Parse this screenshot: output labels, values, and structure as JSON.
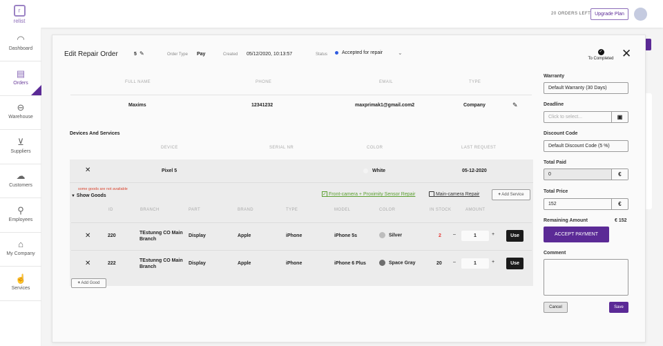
{
  "app": {
    "logo_text": "relist",
    "orders_left": "20 ORDERS LEFT",
    "upgrade_label": "Upgrade Plan"
  },
  "sidebar": {
    "items": [
      {
        "label": "Dashboard",
        "icon": "gauge-icon"
      },
      {
        "label": "Orders",
        "icon": "clipboard-icon"
      },
      {
        "label": "Warehouse",
        "icon": "warehouse-lock-icon"
      },
      {
        "label": "Suppliers",
        "icon": "cart-icon"
      },
      {
        "label": "Customers",
        "icon": "customers-icon"
      },
      {
        "label": "Employees",
        "icon": "person-icon"
      },
      {
        "label": "My Company",
        "icon": "store-icon"
      },
      {
        "label": "Services",
        "icon": "hand-icon"
      }
    ]
  },
  "modal": {
    "title": "Edit Repair Order",
    "order_number": "5",
    "order_type_label": "Order Type",
    "order_type": "Pay",
    "created_label": "Created",
    "created": "05/12/2020, 10:13:57",
    "status_label": "Status",
    "status": "Accepted for repair",
    "status_color": "#2f5be0",
    "to_completed": "To Completed",
    "customer": {
      "headers": [
        "FULL NAME",
        "PHONE",
        "EMAIL",
        "TYPE"
      ],
      "values": [
        "Maxims",
        "12341232",
        "maxprimak1@gmail.com2",
        "Company"
      ]
    },
    "devices_title": "Devices And Services",
    "device_headers": [
      "DEVICE",
      "SERIAL NR",
      "COLOR",
      "LAST REQUEST"
    ],
    "device": {
      "name": "Pixel 5",
      "serial": "",
      "color": "White",
      "last_request": "05-12-2020"
    },
    "warning": "some goods are not available",
    "show_goods": "Show Goods",
    "services": [
      {
        "label": "Front-camera + Proximity Sensor Repair",
        "checked": true
      },
      {
        "label": "Main-camera Repair",
        "checked": false
      }
    ],
    "add_service": "Add Service",
    "goods_headers": [
      "ID",
      "BRANCH",
      "PART",
      "BRAND",
      "TYPE",
      "MODEL",
      "COLOR",
      "IN STOCK",
      "AMOUNT"
    ],
    "goods": [
      {
        "id": "220",
        "branch": "TEstunng CO Main Branch",
        "part": "Display",
        "brand": "Apple",
        "type": "iPhone",
        "model": "iPhone 5s",
        "color": "Silver",
        "swatch": "#bdbdbd",
        "in_stock": "2",
        "amount": "1",
        "use": "Use"
      },
      {
        "id": "222",
        "branch": "TEstunng CO Main Branch",
        "part": "Display",
        "brand": "Apple",
        "type": "iPhone",
        "model": "iPhone 6 Plus",
        "color": "Space Gray",
        "swatch": "#6e6e6e",
        "in_stock": "20",
        "amount": "1",
        "use": "Use"
      }
    ],
    "add_good": "Add Good",
    "side": {
      "warranty_label": "Warranty",
      "warranty": "Default Warranty (30 Days)",
      "deadline_label": "Deadline",
      "deadline_placeholder": "Click to select...",
      "discount_label": "Discount Code",
      "discount": "Default Discount Code (5 %)",
      "total_paid_label": "Total Paid",
      "total_paid": "0",
      "currency": "€",
      "total_price_label": "Total Price",
      "total_price": "152",
      "remaining_label": "Remaining Amount",
      "remaining": "€ 152",
      "accept_payment": "ACCEPT PAYMENT",
      "comment_label": "Comment",
      "comment": "",
      "cancel": "Cancel",
      "save": "Save"
    }
  },
  "colors": {
    "accent": "#5b2a96",
    "warning": "#d9442e",
    "service_checked": "#5a9e2f"
  }
}
